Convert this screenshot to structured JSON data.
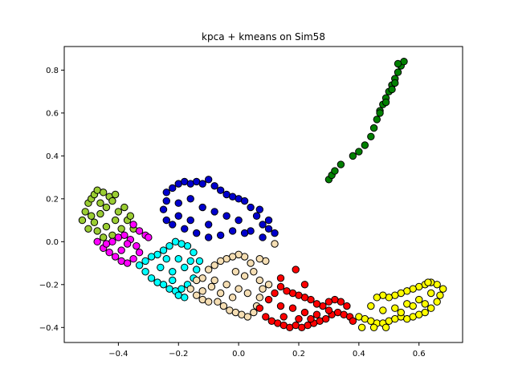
{
  "chart_data": {
    "type": "scatter",
    "title": "kpca + kmeans on Sim58",
    "xlabel": "",
    "ylabel": "",
    "xlim": [
      -0.58,
      0.745
    ],
    "ylim": [
      -0.47,
      0.91
    ],
    "xticks": [
      -0.4,
      -0.2,
      0.0,
      0.2,
      0.4,
      0.6
    ],
    "xtick_labels": [
      "−0.4",
      "−0.2",
      "0.0",
      "0.2",
      "0.4",
      "0.6"
    ],
    "yticks": [
      -0.4,
      -0.2,
      0.0,
      0.2,
      0.4,
      0.6,
      0.8
    ],
    "ytick_labels": [
      "−0.4",
      "−0.2",
      "0.0",
      "0.2",
      "0.4",
      "0.6",
      "0.8"
    ],
    "grid": false,
    "legend": "none",
    "marker_edge_color": "#000000",
    "series": [
      {
        "color": "#008000",
        "cluster": "green",
        "values": [
          [
            0.3,
            0.29
          ],
          [
            0.31,
            0.31
          ],
          [
            0.32,
            0.33
          ],
          [
            0.34,
            0.36
          ],
          [
            0.38,
            0.4
          ],
          [
            0.4,
            0.42
          ],
          [
            0.42,
            0.45
          ],
          [
            0.44,
            0.49
          ],
          [
            0.45,
            0.53
          ],
          [
            0.46,
            0.57
          ],
          [
            0.47,
            0.61
          ],
          [
            0.48,
            0.64
          ],
          [
            0.49,
            0.67
          ],
          [
            0.5,
            0.7
          ],
          [
            0.51,
            0.73
          ],
          [
            0.52,
            0.76
          ],
          [
            0.53,
            0.79
          ],
          [
            0.54,
            0.82
          ],
          [
            0.55,
            0.84
          ],
          [
            0.53,
            0.83
          ],
          [
            0.47,
            0.6
          ],
          [
            0.49,
            0.65
          ],
          [
            0.51,
            0.71
          ],
          [
            0.52,
            0.74
          ]
        ]
      },
      {
        "color": "#0000cd",
        "cluster": "blue",
        "values": [
          [
            -0.24,
            0.23
          ],
          [
            -0.22,
            0.25
          ],
          [
            -0.2,
            0.27
          ],
          [
            -0.18,
            0.28
          ],
          [
            -0.16,
            0.27
          ],
          [
            -0.14,
            0.28
          ],
          [
            -0.12,
            0.27
          ],
          [
            -0.1,
            0.29
          ],
          [
            -0.08,
            0.26
          ],
          [
            -0.06,
            0.24
          ],
          [
            -0.04,
            0.22
          ],
          [
            -0.02,
            0.21
          ],
          [
            0.0,
            0.2
          ],
          [
            0.02,
            0.19
          ],
          [
            0.04,
            0.16
          ],
          [
            0.06,
            0.12
          ],
          [
            0.08,
            0.08
          ],
          [
            0.1,
            0.06
          ],
          [
            0.12,
            0.04
          ],
          [
            0.08,
            0.02
          ],
          [
            0.04,
            0.05
          ],
          [
            0.02,
            0.04
          ],
          [
            -0.02,
            0.05
          ],
          [
            -0.06,
            0.03
          ],
          [
            -0.1,
            0.02
          ],
          [
            -0.14,
            0.04
          ],
          [
            -0.18,
            0.06
          ],
          [
            -0.22,
            0.08
          ],
          [
            -0.24,
            0.1
          ],
          [
            -0.25,
            0.15
          ],
          [
            -0.24,
            0.19
          ],
          [
            -0.2,
            0.18
          ],
          [
            -0.16,
            0.2
          ],
          [
            -0.12,
            0.16
          ],
          [
            -0.08,
            0.14
          ],
          [
            -0.04,
            0.12
          ],
          [
            0.0,
            0.1
          ],
          [
            -0.16,
            0.1
          ],
          [
            -0.1,
            0.08
          ],
          [
            -0.2,
            0.12
          ],
          [
            0.1,
            0.1
          ],
          [
            0.07,
            0.15
          ]
        ]
      },
      {
        "color": "#9acd32",
        "cluster": "olive",
        "values": [
          [
            -0.52,
            0.1
          ],
          [
            -0.51,
            0.14
          ],
          [
            -0.5,
            0.18
          ],
          [
            -0.49,
            0.2
          ],
          [
            -0.48,
            0.22
          ],
          [
            -0.47,
            0.24
          ],
          [
            -0.45,
            0.23
          ],
          [
            -0.43,
            0.21
          ],
          [
            -0.42,
            0.19
          ],
          [
            -0.44,
            0.16
          ],
          [
            -0.46,
            0.13
          ],
          [
            -0.48,
            0.09
          ],
          [
            -0.5,
            0.06
          ],
          [
            -0.47,
            0.05
          ],
          [
            -0.44,
            0.07
          ],
          [
            -0.41,
            0.1
          ],
          [
            -0.4,
            0.14
          ],
          [
            -0.38,
            0.16
          ],
          [
            -0.37,
            0.1
          ],
          [
            -0.39,
            0.06
          ],
          [
            -0.42,
            0.03
          ],
          [
            -0.45,
            0.02
          ],
          [
            -0.35,
            0.06
          ],
          [
            -0.36,
            0.12
          ],
          [
            -0.41,
            0.22
          ],
          [
            -0.46,
            0.18
          ],
          [
            -0.49,
            0.12
          ]
        ]
      },
      {
        "color": "#ff00ff",
        "cluster": "magenta",
        "values": [
          [
            -0.47,
            0.0
          ],
          [
            -0.45,
            -0.03
          ],
          [
            -0.43,
            -0.05
          ],
          [
            -0.41,
            -0.07
          ],
          [
            -0.39,
            -0.09
          ],
          [
            -0.37,
            -0.1
          ],
          [
            -0.35,
            -0.08
          ],
          [
            -0.33,
            -0.05
          ],
          [
            -0.34,
            -0.02
          ],
          [
            -0.36,
            0.01
          ],
          [
            -0.38,
            0.03
          ],
          [
            -0.4,
            0.02
          ],
          [
            -0.42,
            0.0
          ],
          [
            -0.44,
            -0.01
          ],
          [
            -0.31,
            0.03
          ],
          [
            -0.33,
            0.05
          ],
          [
            -0.35,
            0.08
          ],
          [
            -0.3,
            0.02
          ],
          [
            -0.39,
            -0.04
          ],
          [
            -0.37,
            -0.01
          ]
        ]
      },
      {
        "color": "#00ffff",
        "cluster": "cyan",
        "values": [
          [
            -0.33,
            -0.11
          ],
          [
            -0.31,
            -0.14
          ],
          [
            -0.29,
            -0.17
          ],
          [
            -0.27,
            -0.19
          ],
          [
            -0.25,
            -0.2
          ],
          [
            -0.23,
            -0.22
          ],
          [
            -0.21,
            -0.23
          ],
          [
            -0.19,
            -0.22
          ],
          [
            -0.17,
            -0.2
          ],
          [
            -0.15,
            -0.17
          ],
          [
            -0.14,
            -0.13
          ],
          [
            -0.13,
            -0.09
          ],
          [
            -0.15,
            -0.05
          ],
          [
            -0.17,
            -0.02
          ],
          [
            -0.19,
            -0.01
          ],
          [
            -0.21,
            0.0
          ],
          [
            -0.23,
            -0.02
          ],
          [
            -0.25,
            -0.04
          ],
          [
            -0.27,
            -0.06
          ],
          [
            -0.29,
            -0.07
          ],
          [
            -0.31,
            -0.09
          ],
          [
            -0.26,
            -0.12
          ],
          [
            -0.22,
            -0.14
          ],
          [
            -0.18,
            -0.12
          ],
          [
            -0.2,
            -0.08
          ],
          [
            -0.24,
            -0.08
          ],
          [
            -0.16,
            -0.09
          ],
          [
            -0.22,
            -0.18
          ],
          [
            -0.2,
            -0.25
          ],
          [
            -0.18,
            -0.26
          ]
        ]
      },
      {
        "color": "#f5deb3",
        "cluster": "wheat",
        "values": [
          [
            -0.16,
            -0.22
          ],
          [
            -0.14,
            -0.25
          ],
          [
            -0.12,
            -0.27
          ],
          [
            -0.1,
            -0.28
          ],
          [
            -0.07,
            -0.28
          ],
          [
            -0.05,
            -0.3
          ],
          [
            -0.03,
            -0.32
          ],
          [
            -0.01,
            -0.33
          ],
          [
            0.01,
            -0.34
          ],
          [
            0.03,
            -0.35
          ],
          [
            0.05,
            -0.33
          ],
          [
            0.06,
            -0.3
          ],
          [
            0.07,
            -0.26
          ],
          [
            0.08,
            -0.22
          ],
          [
            0.07,
            -0.18
          ],
          [
            0.05,
            -0.14
          ],
          [
            0.04,
            -0.1
          ],
          [
            0.02,
            -0.07
          ],
          [
            0.0,
            -0.06
          ],
          [
            -0.02,
            -0.07
          ],
          [
            -0.04,
            -0.08
          ],
          [
            -0.06,
            -0.09
          ],
          [
            -0.08,
            -0.11
          ],
          [
            -0.1,
            -0.13
          ],
          [
            -0.12,
            -0.17
          ],
          [
            -0.14,
            -0.18
          ],
          [
            -0.08,
            -0.18
          ],
          [
            -0.04,
            -0.2
          ],
          [
            0.0,
            -0.22
          ],
          [
            0.03,
            -0.24
          ],
          [
            -0.02,
            -0.26
          ],
          [
            -0.06,
            -0.24
          ],
          [
            0.02,
            -0.16
          ],
          [
            0.1,
            -0.2
          ],
          [
            0.09,
            -0.09
          ],
          [
            0.12,
            -0.01
          ],
          [
            0.07,
            -0.08
          ],
          [
            -0.01,
            -0.14
          ],
          [
            -0.09,
            -0.21
          ],
          [
            -0.12,
            -0.23
          ]
        ]
      },
      {
        "color": "#ff0000",
        "cluster": "red",
        "values": [
          [
            0.07,
            -0.31
          ],
          [
            0.09,
            -0.35
          ],
          [
            0.11,
            -0.37
          ],
          [
            0.13,
            -0.38
          ],
          [
            0.15,
            -0.39
          ],
          [
            0.17,
            -0.4
          ],
          [
            0.19,
            -0.39
          ],
          [
            0.21,
            -0.4
          ],
          [
            0.23,
            -0.39
          ],
          [
            0.25,
            -0.38
          ],
          [
            0.27,
            -0.37
          ],
          [
            0.29,
            -0.36
          ],
          [
            0.31,
            -0.34
          ],
          [
            0.33,
            -0.33
          ],
          [
            0.35,
            -0.34
          ],
          [
            0.37,
            -0.35
          ],
          [
            0.36,
            -0.3
          ],
          [
            0.34,
            -0.28
          ],
          [
            0.32,
            -0.27
          ],
          [
            0.3,
            -0.28
          ],
          [
            0.28,
            -0.3
          ],
          [
            0.26,
            -0.29
          ],
          [
            0.24,
            -0.27
          ],
          [
            0.22,
            -0.26
          ],
          [
            0.2,
            -0.25
          ],
          [
            0.18,
            -0.24
          ],
          [
            0.16,
            -0.23
          ],
          [
            0.14,
            -0.21
          ],
          [
            0.12,
            -0.24
          ],
          [
            0.1,
            -0.27
          ],
          [
            0.14,
            -0.3
          ],
          [
            0.18,
            -0.31
          ],
          [
            0.22,
            -0.33
          ],
          [
            0.26,
            -0.34
          ],
          [
            0.3,
            -0.32
          ],
          [
            0.15,
            -0.35
          ],
          [
            0.2,
            -0.36
          ],
          [
            0.24,
            -0.36
          ],
          [
            0.14,
            -0.17
          ],
          [
            0.19,
            -0.13
          ],
          [
            0.22,
            -0.2
          ],
          [
            0.38,
            -0.37
          ]
        ]
      },
      {
        "color": "#ffff00",
        "cluster": "yellow",
        "values": [
          [
            0.4,
            -0.35
          ],
          [
            0.42,
            -0.36
          ],
          [
            0.44,
            -0.37
          ],
          [
            0.46,
            -0.38
          ],
          [
            0.48,
            -0.38
          ],
          [
            0.5,
            -0.37
          ],
          [
            0.52,
            -0.36
          ],
          [
            0.54,
            -0.35
          ],
          [
            0.56,
            -0.36
          ],
          [
            0.58,
            -0.35
          ],
          [
            0.6,
            -0.34
          ],
          [
            0.62,
            -0.33
          ],
          [
            0.64,
            -0.31
          ],
          [
            0.66,
            -0.28
          ],
          [
            0.67,
            -0.25
          ],
          [
            0.68,
            -0.22
          ],
          [
            0.66,
            -0.2
          ],
          [
            0.64,
            -0.19
          ],
          [
            0.62,
            -0.2
          ],
          [
            0.6,
            -0.21
          ],
          [
            0.58,
            -0.22
          ],
          [
            0.56,
            -0.23
          ],
          [
            0.54,
            -0.24
          ],
          [
            0.52,
            -0.25
          ],
          [
            0.5,
            -0.26
          ],
          [
            0.48,
            -0.25
          ],
          [
            0.46,
            -0.26
          ],
          [
            0.44,
            -0.3
          ],
          [
            0.52,
            -0.31
          ],
          [
            0.56,
            -0.29
          ],
          [
            0.6,
            -0.27
          ],
          [
            0.64,
            -0.24
          ],
          [
            0.58,
            -0.3
          ],
          [
            0.54,
            -0.33
          ],
          [
            0.62,
            -0.29
          ],
          [
            0.48,
            -0.32
          ],
          [
            0.45,
            -0.4
          ],
          [
            0.41,
            -0.4
          ],
          [
            0.49,
            -0.4
          ],
          [
            0.63,
            -0.19
          ]
        ]
      }
    ]
  }
}
